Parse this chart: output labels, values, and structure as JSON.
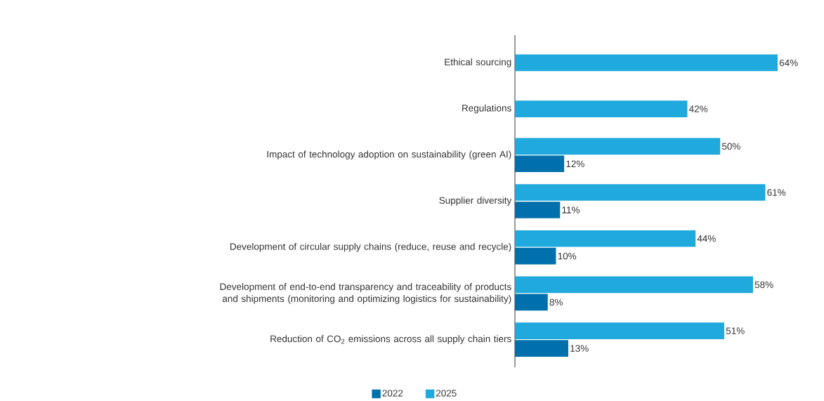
{
  "chart_data": {
    "type": "bar",
    "orientation": "horizontal",
    "categories": [
      "Ethical sourcing",
      "Regulations",
      "Impact of technology adoption on sustainability (green AI)",
      "Supplier diversity",
      "Development of circular supply chains (reduce, reuse and recycle)",
      "Development of end-to-end transparency and traceability of products and shipments (monitoring and optimizing logistics for sustainability)",
      "Reduction of CO$_{2}$ emissions across all supply chain tiers"
    ],
    "series": [
      {
        "name": "2022",
        "color": "#0070ad",
        "values": [
          null,
          null,
          12,
          11,
          10,
          8,
          13
        ],
        "value_labels": [
          null,
          null,
          "12%",
          "11%",
          "10%",
          "8%",
          "13%"
        ]
      },
      {
        "name": "2025",
        "color": "#1fa9dc",
        "values": [
          64,
          42,
          50,
          61,
          44,
          58,
          51
        ],
        "value_labels": [
          "64%",
          "42%",
          "50%",
          "61%",
          "44%",
          "58%",
          "51%"
        ]
      }
    ],
    "xlim": [
      0,
      64
    ],
    "tick_labels": "y",
    "legend": "bottom"
  }
}
